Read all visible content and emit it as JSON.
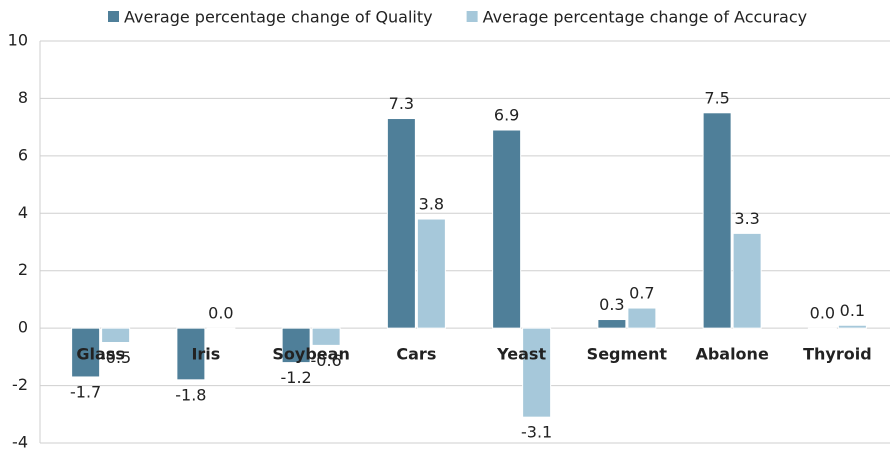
{
  "chart_data": {
    "type": "bar",
    "categories": [
      "Glass",
      "Iris",
      "Soybean",
      "Cars",
      "Yeast",
      "Segment",
      "Abalone",
      "Thyroid"
    ],
    "series": [
      {
        "name": "Average percentage change of Quality",
        "color": "#4f7f99",
        "values": [
          -1.7,
          -1.8,
          -1.2,
          7.3,
          6.9,
          0.3,
          7.5,
          0.0
        ],
        "value_labels": [
          "-1.7",
          "-1.8",
          "-1.2",
          "7.3",
          "6.9",
          "0.3",
          "7.5",
          "0.0"
        ]
      },
      {
        "name": "Average percentage change of Accuracy",
        "color": "#a6c8da",
        "values": [
          -0.5,
          0.0,
          -0.6,
          3.8,
          -3.1,
          0.7,
          3.3,
          0.1
        ],
        "value_labels": [
          "-0.5",
          "0.0",
          "-0.6",
          "3.8",
          "-3.1",
          "0.7",
          "3.3",
          "0.1"
        ]
      }
    ],
    "ylim": [
      -4,
      10
    ],
    "yticks": [
      -4,
      -2,
      0,
      2,
      4,
      6,
      8,
      10
    ],
    "grid": true,
    "legend": "top"
  }
}
